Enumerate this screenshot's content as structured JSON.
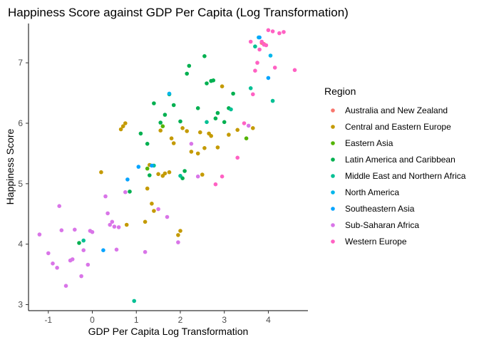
{
  "chart_data": {
    "type": "scatter",
    "title": "Happiness Score against GDP Per Capita (Log Transformation)",
    "xlabel": "GDP Per Capita Log Transformation",
    "ylabel": "Happiness Score",
    "xlim": [
      -1.45,
      4.9
    ],
    "ylim": [
      2.9,
      7.65
    ],
    "xticks": [
      -1,
      0,
      1,
      2,
      3,
      4
    ],
    "yticks": [
      3,
      4,
      5,
      6,
      7
    ],
    "grid": false,
    "legend": {
      "title": "Region",
      "position": "right"
    },
    "series": [
      {
        "name": "Australia and New Zealand",
        "color": "#F8766D",
        "points": [
          [
            3.85,
            7.33
          ],
          [
            3.9,
            7.31
          ]
        ]
      },
      {
        "name": "Central and Eastern Europe",
        "color": "#C49A00",
        "points": [
          [
            0.2,
            5.19
          ],
          [
            0.65,
            5.9
          ],
          [
            0.75,
            6.0
          ],
          [
            0.7,
            5.95
          ],
          [
            0.78,
            4.32
          ],
          [
            1.2,
            4.37
          ],
          [
            1.25,
            4.92
          ],
          [
            1.3,
            5.31
          ],
          [
            1.35,
            4.67
          ],
          [
            1.4,
            4.55
          ],
          [
            1.5,
            5.16
          ],
          [
            1.55,
            5.88
          ],
          [
            1.6,
            5.13
          ],
          [
            1.65,
            5.17
          ],
          [
            1.75,
            5.19
          ],
          [
            1.8,
            5.75
          ],
          [
            1.85,
            5.67
          ],
          [
            1.95,
            4.15
          ],
          [
            2.0,
            4.22
          ],
          [
            2.05,
            5.92
          ],
          [
            2.15,
            5.87
          ],
          [
            2.25,
            5.53
          ],
          [
            2.4,
            5.5
          ],
          [
            2.45,
            5.85
          ],
          [
            2.5,
            5.15
          ],
          [
            2.55,
            5.59
          ],
          [
            2.65,
            5.83
          ],
          [
            2.7,
            5.79
          ],
          [
            2.85,
            5.6
          ],
          [
            2.95,
            6.61
          ],
          [
            3.1,
            5.81
          ],
          [
            3.3,
            5.89
          ],
          [
            3.65,
            5.92
          ]
        ]
      },
      {
        "name": "Eastern Asia",
        "color": "#53B400",
        "points": [
          [
            1.25,
            5.25
          ],
          [
            1.6,
            5.95
          ],
          [
            3.5,
            5.75
          ]
        ]
      },
      {
        "name": "Latin America and Caribbean",
        "color": "#00B050",
        "points": [
          [
            -0.3,
            4.02
          ],
          [
            0.85,
            4.87
          ],
          [
            1.1,
            5.83
          ],
          [
            1.25,
            5.66
          ],
          [
            1.3,
            5.14
          ],
          [
            1.4,
            6.33
          ],
          [
            1.55,
            6.01
          ],
          [
            1.65,
            6.14
          ],
          [
            1.75,
            6.48
          ],
          [
            1.85,
            6.3
          ],
          [
            2.0,
            6.03
          ],
          [
            2.05,
            5.09
          ],
          [
            2.1,
            5.21
          ],
          [
            2.15,
            6.82
          ],
          [
            2.2,
            6.95
          ],
          [
            2.4,
            6.25
          ],
          [
            2.55,
            7.11
          ],
          [
            2.6,
            6.66
          ],
          [
            2.7,
            6.7
          ],
          [
            2.75,
            6.71
          ],
          [
            2.8,
            6.08
          ],
          [
            2.85,
            6.17
          ],
          [
            3.0,
            6.02
          ],
          [
            3.1,
            6.25
          ],
          [
            3.2,
            6.49
          ]
        ]
      },
      {
        "name": "Middle East and Northern Africa",
        "color": "#00C094",
        "points": [
          [
            -0.2,
            4.06
          ],
          [
            0.95,
            3.06
          ],
          [
            1.4,
            5.3
          ],
          [
            2.0,
            5.13
          ],
          [
            2.6,
            6.02
          ],
          [
            3.15,
            6.23
          ],
          [
            3.6,
            6.58
          ],
          [
            3.7,
            7.27
          ],
          [
            4.1,
            6.37
          ]
        ]
      },
      {
        "name": "North America",
        "color": "#00B6EB",
        "points": [
          [
            1.75,
            6.49
          ],
          [
            3.78,
            7.42
          ],
          [
            4.05,
            7.12
          ]
        ]
      },
      {
        "name": "Southeastern Asia",
        "color": "#06A4FF",
        "points": [
          [
            0.25,
            3.9
          ],
          [
            0.8,
            5.07
          ],
          [
            1.05,
            5.28
          ],
          [
            1.35,
            5.3
          ],
          [
            3.8,
            7.42
          ],
          [
            4.0,
            6.75
          ]
        ]
      },
      {
        "name": "Sub-Saharan Africa",
        "color": "#D975E8",
        "points": [
          [
            -1.2,
            4.16
          ],
          [
            -1.0,
            3.85
          ],
          [
            -0.9,
            3.68
          ],
          [
            -0.8,
            3.61
          ],
          [
            -0.75,
            4.63
          ],
          [
            -0.7,
            4.23
          ],
          [
            -0.6,
            3.31
          ],
          [
            -0.5,
            3.73
          ],
          [
            -0.45,
            3.75
          ],
          [
            -0.4,
            4.24
          ],
          [
            -0.25,
            3.47
          ],
          [
            -0.2,
            3.9
          ],
          [
            -0.1,
            3.66
          ],
          [
            -0.05,
            4.22
          ],
          [
            0.0,
            4.2
          ],
          [
            0.3,
            4.79
          ],
          [
            0.35,
            4.51
          ],
          [
            0.4,
            4.32
          ],
          [
            0.45,
            4.37
          ],
          [
            0.5,
            4.29
          ],
          [
            0.55,
            3.91
          ],
          [
            0.6,
            4.28
          ],
          [
            0.75,
            4.86
          ],
          [
            1.2,
            3.87
          ],
          [
            1.5,
            4.58
          ],
          [
            1.7,
            4.45
          ],
          [
            1.95,
            4.03
          ],
          [
            2.25,
            5.66
          ],
          [
            2.4,
            5.12
          ],
          [
            3.55,
            5.96
          ]
        ]
      },
      {
        "name": "Western Europe",
        "color": "#FF61C3",
        "points": [
          [
            2.8,
            4.99
          ],
          [
            2.95,
            5.12
          ],
          [
            3.3,
            5.43
          ],
          [
            3.45,
            6.0
          ],
          [
            3.65,
            6.48
          ],
          [
            3.7,
            6.87
          ],
          [
            3.75,
            7.0
          ],
          [
            3.8,
            7.22
          ],
          [
            3.85,
            7.35
          ],
          [
            3.9,
            7.3
          ],
          [
            3.95,
            7.29
          ],
          [
            4.0,
            7.54
          ],
          [
            4.1,
            7.52
          ],
          [
            4.15,
            6.92
          ],
          [
            4.25,
            7.49
          ],
          [
            4.35,
            7.51
          ],
          [
            4.6,
            6.88
          ],
          [
            3.6,
            7.35
          ]
        ]
      }
    ]
  }
}
